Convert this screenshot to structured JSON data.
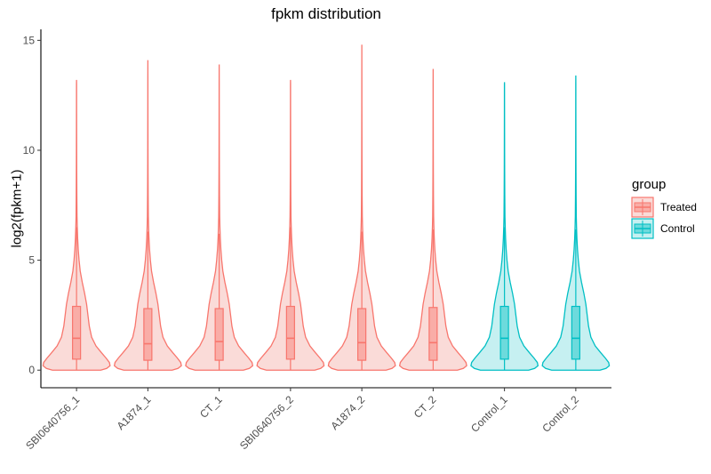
{
  "chart_data": {
    "type": "violin",
    "title": "fpkm distribution",
    "xlabel": "",
    "ylabel": "log2(fpkm+1)",
    "ylim": [
      -0.8,
      15.5
    ],
    "yticks": [
      0,
      5,
      10,
      15
    ],
    "categories": [
      "SBI0640756_1",
      "A1874_1",
      "CT_1",
      "SBI0640756_2",
      "A1874_2",
      "CT_2",
      "Control_1",
      "Control_2"
    ],
    "groups": [
      "Treated",
      "Treated",
      "Treated",
      "Treated",
      "Treated",
      "Treated",
      "Control",
      "Control"
    ],
    "legend": {
      "title": "group",
      "position": "right",
      "entries": [
        {
          "label": "Treated",
          "color": "#F8766D",
          "fill": "#FADBD8"
        },
        {
          "label": "Control",
          "color": "#00BFC4",
          "fill": "#C6F0F1"
        }
      ]
    },
    "samples": [
      {
        "name": "SBI0640756_1",
        "min": 0,
        "q1": 0.5,
        "median": 1.45,
        "q3": 2.9,
        "whisker_high": 6.5,
        "max": 13.2
      },
      {
        "name": "A1874_1",
        "min": 0,
        "q1": 0.45,
        "median": 1.2,
        "q3": 2.8,
        "whisker_high": 6.3,
        "max": 14.1
      },
      {
        "name": "CT_1",
        "min": 0,
        "q1": 0.45,
        "median": 1.3,
        "q3": 2.8,
        "whisker_high": 6.2,
        "max": 13.9
      },
      {
        "name": "SBI0640756_2",
        "min": 0,
        "q1": 0.5,
        "median": 1.45,
        "q3": 2.9,
        "whisker_high": 6.5,
        "max": 13.2
      },
      {
        "name": "A1874_2",
        "min": 0,
        "q1": 0.45,
        "median": 1.25,
        "q3": 2.8,
        "whisker_high": 6.3,
        "max": 14.8
      },
      {
        "name": "CT_2",
        "min": 0,
        "q1": 0.45,
        "median": 1.25,
        "q3": 2.85,
        "whisker_high": 6.4,
        "max": 13.7
      },
      {
        "name": "Control_1",
        "min": 0,
        "q1": 0.5,
        "median": 1.45,
        "q3": 2.9,
        "whisker_high": 6.5,
        "max": 13.1
      },
      {
        "name": "Control_2",
        "min": 0,
        "q1": 0.5,
        "median": 1.45,
        "q3": 2.9,
        "whisker_high": 6.4,
        "max": 13.4
      }
    ],
    "density_profile": [
      [
        0,
        0.72
      ],
      [
        0.08,
        0.9
      ],
      [
        0.2,
        1.0
      ],
      [
        0.35,
        0.98
      ],
      [
        0.55,
        0.88
      ],
      [
        0.8,
        0.74
      ],
      [
        1.1,
        0.58
      ],
      [
        1.5,
        0.45
      ],
      [
        2.0,
        0.38
      ],
      [
        2.5,
        0.34
      ],
      [
        3.0,
        0.3
      ],
      [
        3.5,
        0.24
      ],
      [
        4.0,
        0.17
      ],
      [
        4.5,
        0.11
      ],
      [
        5.0,
        0.075
      ],
      [
        5.5,
        0.05
      ],
      [
        6.0,
        0.033
      ],
      [
        6.5,
        0.022
      ],
      [
        7.0,
        0.014
      ],
      [
        8.0,
        0.009
      ],
      [
        9.0,
        0.006
      ],
      [
        10.0,
        0.004
      ],
      [
        11.0,
        0.003
      ],
      [
        12.0,
        0.002
      ],
      [
        13.0,
        0.0015
      ]
    ]
  }
}
